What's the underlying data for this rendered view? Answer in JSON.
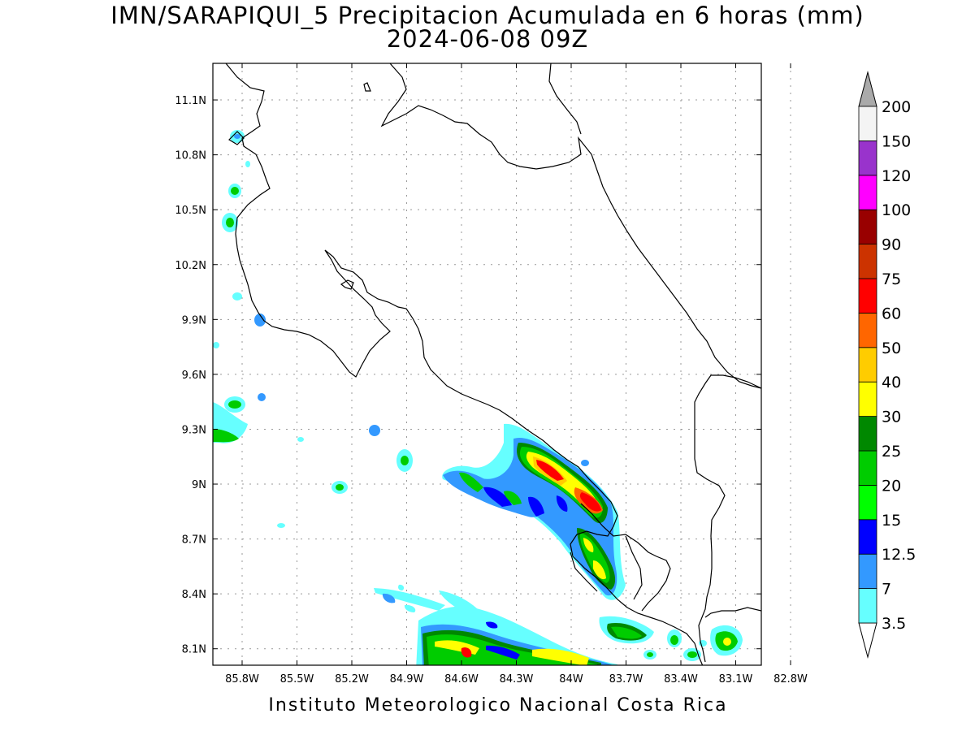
{
  "title_line1": "IMN/SARAPIQUI_5 Precipitacion Acumulada en 6 horas (mm)",
  "title_line2": "2024-06-08 09Z",
  "footer": "Instituto Meteorologico Nacional Costa Rica",
  "lat_ticks": [
    {
      "value": 11.1,
      "label": "11.1N"
    },
    {
      "value": 10.8,
      "label": "10.8N"
    },
    {
      "value": 10.5,
      "label": "10.5N"
    },
    {
      "value": 10.2,
      "label": "10.2N"
    },
    {
      "value": 9.9,
      "label": "9.9N"
    },
    {
      "value": 9.6,
      "label": "9.6N"
    },
    {
      "value": 9.3,
      "label": "9.3N"
    },
    {
      "value": 9.0,
      "label": "9N"
    },
    {
      "value": 8.7,
      "label": "8.7N"
    },
    {
      "value": 8.4,
      "label": "8.4N"
    },
    {
      "value": 8.1,
      "label": "8.1N"
    }
  ],
  "lon_ticks": [
    {
      "value": -85.8,
      "label": "85.8W"
    },
    {
      "value": -85.5,
      "label": "85.5W"
    },
    {
      "value": -85.2,
      "label": "85.2W"
    },
    {
      "value": -84.9,
      "label": "84.9W"
    },
    {
      "value": -84.6,
      "label": "84.6W"
    },
    {
      "value": -84.3,
      "label": "84.3W"
    },
    {
      "value": -84.0,
      "label": "84W"
    },
    {
      "value": -83.7,
      "label": "83.7W"
    },
    {
      "value": -83.4,
      "label": "83.4W"
    },
    {
      "value": -83.1,
      "label": "83.1W"
    },
    {
      "value": -82.8,
      "label": "82.8W"
    }
  ],
  "map_extent": {
    "lon_min": -85.96,
    "lon_max": -82.96,
    "lat_min": 8.01,
    "lat_max": 11.3
  },
  "colorbar": {
    "levels": [
      "3.5",
      "7",
      "12.5",
      "15",
      "20",
      "25",
      "30",
      "40",
      "50",
      "60",
      "75",
      "90",
      "100",
      "120",
      "150",
      "200"
    ],
    "colors": [
      "#ffffff",
      "#66ffff",
      "#3399ff",
      "#0000ff",
      "#00ff00",
      "#00cc00",
      "#008800",
      "#ffff00",
      "#ffcc00",
      "#ff6600",
      "#ff0000",
      "#cc3300",
      "#990000",
      "#ff00ff",
      "#9933cc",
      "#f4f4f4",
      "#aaaaaa"
    ]
  }
}
